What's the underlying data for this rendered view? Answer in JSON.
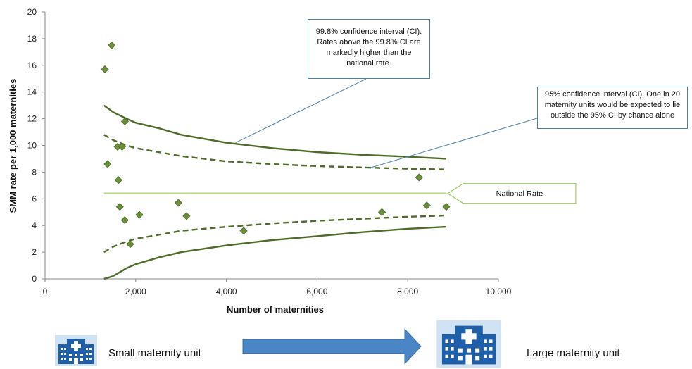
{
  "chart_data": {
    "type": "scatter",
    "title": "",
    "xlabel": "Number of maternities",
    "ylabel": "SMM rate per 1,000  maternities",
    "xlim": [
      0,
      10000
    ],
    "ylim": [
      0,
      20
    ],
    "x_ticks": [
      "0",
      "2,000",
      "4,000",
      "6,000",
      "8,000",
      "10,000"
    ],
    "y_ticks": [
      "0",
      "2",
      "4",
      "6",
      "8",
      "10",
      "12",
      "14",
      "16",
      "18",
      "20"
    ],
    "grid": false,
    "points": [
      {
        "x": 1320,
        "y": 15.7
      },
      {
        "x": 1470,
        "y": 17.5
      },
      {
        "x": 1380,
        "y": 8.6
      },
      {
        "x": 1600,
        "y": 9.9
      },
      {
        "x": 1700,
        "y": 9.9
      },
      {
        "x": 1760,
        "y": 11.8
      },
      {
        "x": 1620,
        "y": 7.4
      },
      {
        "x": 1650,
        "y": 5.4
      },
      {
        "x": 1760,
        "y": 4.4
      },
      {
        "x": 1880,
        "y": 2.6
      },
      {
        "x": 2080,
        "y": 4.8
      },
      {
        "x": 2940,
        "y": 5.7
      },
      {
        "x": 3120,
        "y": 4.7
      },
      {
        "x": 4380,
        "y": 3.6
      },
      {
        "x": 7430,
        "y": 5.0
      },
      {
        "x": 8250,
        "y": 7.6
      },
      {
        "x": 8420,
        "y": 5.5
      },
      {
        "x": 8850,
        "y": 5.4
      }
    ],
    "national_rate": 6.4,
    "limits": {
      "x": [
        1300,
        1500,
        1800,
        2000,
        2500,
        3000,
        4000,
        5000,
        6000,
        7000,
        8000,
        8850
      ],
      "upper_998": [
        13.0,
        12.5,
        12.0,
        11.7,
        11.3,
        10.8,
        10.2,
        9.8,
        9.5,
        9.3,
        9.15,
        9.0
      ],
      "upper_95": [
        10.8,
        10.4,
        10.0,
        9.8,
        9.5,
        9.2,
        8.8,
        8.6,
        8.45,
        8.35,
        8.25,
        8.2
      ],
      "lower_95": [
        2.0,
        2.4,
        2.8,
        3.0,
        3.3,
        3.6,
        3.9,
        4.15,
        4.35,
        4.5,
        4.65,
        4.75
      ],
      "lower_998": [
        -0.2,
        0.2,
        0.8,
        1.1,
        1.6,
        2.0,
        2.5,
        2.9,
        3.2,
        3.5,
        3.75,
        3.9
      ]
    },
    "annotations": {
      "ci998": "99.8% confidence interval (CI). Rates above the 99.8% CI are markedly higher than the national rate.",
      "ci95": "95% confidence interval (CI). One in 20 maternity units would be expected to lie outside the 95% CI by chance alone",
      "national": "National Rate"
    },
    "colors": {
      "marker": "#6a8f3a",
      "ci_line": "#4f6b28",
      "national_line": "#b7d98c",
      "callout_border": "#4a7fa8",
      "arrow": "#4a86c5"
    }
  },
  "legend": {
    "small_unit": "Small maternity unit",
    "large_unit": "Large maternity unit",
    "icon": "hospital-icon"
  }
}
